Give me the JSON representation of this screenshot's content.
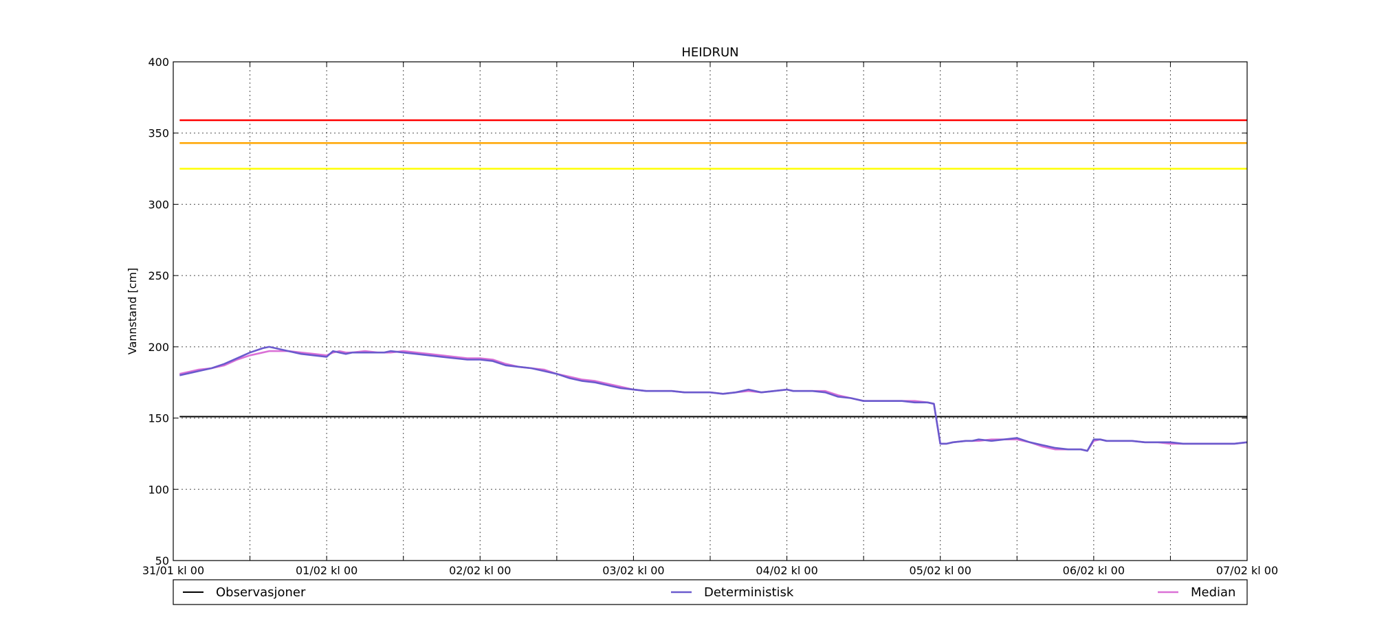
{
  "chart_data": {
    "type": "line",
    "title": "HEIDRUN",
    "xlabel": "",
    "ylabel": "Vannstand [cm]",
    "ylim": [
      50,
      400
    ],
    "yticks": [
      50,
      100,
      150,
      200,
      250,
      300,
      350,
      400
    ],
    "xlim_hours": [
      0,
      168
    ],
    "xticks": [
      {
        "hour": 0,
        "label": "31/01 kl 00"
      },
      {
        "hour": 24,
        "label": "01/02 kl 00"
      },
      {
        "hour": 48,
        "label": "02/02 kl 00"
      },
      {
        "hour": 72,
        "label": "03/02 kl 00"
      },
      {
        "hour": 96,
        "label": "04/02 kl 00"
      },
      {
        "hour": 120,
        "label": "05/02 kl 00"
      },
      {
        "hour": 144,
        "label": "06/02 kl 00"
      },
      {
        "hour": 168,
        "label": "07/02 kl 00"
      }
    ],
    "minor_grid_hours": [
      12,
      36,
      60,
      84,
      108,
      132,
      156
    ],
    "grid": true,
    "legend_position": "bottom",
    "thresholds": [
      {
        "value": 359,
        "color": "#ff0000"
      },
      {
        "value": 343,
        "color": "#ffa500"
      },
      {
        "value": 325,
        "color": "#ffff00"
      }
    ],
    "series": [
      {
        "name": "Observasjoner",
        "color": "#000000",
        "x": [
          1,
          168
        ],
        "y": [
          151,
          151
        ]
      },
      {
        "name": "Deterministisk",
        "color": "#6a5acd",
        "x": [
          1,
          3,
          4,
          6,
          8,
          10,
          12,
          14,
          15,
          16,
          17,
          18,
          20,
          22,
          24,
          25,
          26,
          27,
          28,
          30,
          32,
          33,
          34,
          36,
          38,
          40,
          42,
          44,
          46,
          48,
          50,
          52,
          54,
          56,
          58,
          60,
          62,
          64,
          66,
          68,
          70,
          72,
          74,
          76,
          78,
          80,
          82,
          84,
          86,
          88,
          90,
          92,
          94,
          96,
          97,
          98,
          100,
          102,
          104,
          106,
          108,
          110,
          112,
          114,
          116,
          118,
          119,
          120,
          121,
          122,
          124,
          125,
          126,
          128,
          130,
          132,
          134,
          136,
          138,
          140,
          142,
          143,
          144,
          145,
          146,
          148,
          150,
          152,
          153,
          154,
          156,
          158,
          160,
          162,
          164,
          166,
          168
        ],
        "y": [
          180,
          182,
          183,
          185,
          188,
          192,
          196,
          199,
          200,
          199,
          198,
          197,
          195,
          194,
          193,
          197,
          196,
          195,
          196,
          196,
          196,
          196,
          197,
          196,
          195,
          194,
          193,
          192,
          191,
          191,
          190,
          187,
          186,
          185,
          183,
          181,
          178,
          176,
          175,
          173,
          171,
          170,
          169,
          169,
          169,
          168,
          168,
          168,
          167,
          168,
          170,
          168,
          169,
          170,
          169,
          169,
          169,
          168,
          165,
          164,
          162,
          162,
          162,
          162,
          161,
          161,
          160,
          132,
          132,
          133,
          134,
          134,
          135,
          134,
          135,
          136,
          133,
          131,
          129,
          128,
          128,
          127,
          135,
          135,
          134,
          134,
          134,
          133,
          133,
          133,
          133,
          132,
          132,
          132,
          132,
          132,
          133
        ]
      },
      {
        "name": "Median",
        "color": "#da70d6",
        "x": [
          1,
          3,
          4,
          6,
          8,
          10,
          12,
          14,
          15,
          16,
          17,
          18,
          20,
          22,
          24,
          25,
          26,
          27,
          28,
          30,
          32,
          33,
          34,
          36,
          38,
          40,
          42,
          44,
          46,
          48,
          50,
          52,
          54,
          56,
          58,
          60,
          62,
          64,
          66,
          68,
          70,
          72,
          74,
          76,
          78,
          80,
          82,
          84,
          86,
          88,
          90,
          92,
          94,
          96,
          97,
          98,
          100,
          102,
          104,
          106,
          108,
          110,
          112,
          114,
          116,
          118,
          119,
          120,
          121,
          122,
          124,
          125,
          126,
          128,
          130,
          132,
          134,
          136,
          138,
          140,
          142,
          143,
          144,
          145,
          146,
          148,
          150,
          152,
          153,
          154,
          156,
          158,
          160,
          162,
          164,
          166,
          168
        ],
        "y": [
          181,
          183,
          184,
          185,
          187,
          191,
          194,
          196,
          197,
          197,
          197,
          197,
          196,
          195,
          194,
          196,
          197,
          196,
          196,
          197,
          196,
          196,
          196,
          197,
          196,
          195,
          194,
          193,
          192,
          192,
          191,
          188,
          186,
          185,
          184,
          181,
          179,
          177,
          176,
          174,
          172,
          170,
          169,
          169,
          169,
          168,
          168,
          168,
          167,
          168,
          169,
          168,
          169,
          170,
          169,
          169,
          169,
          169,
          166,
          164,
          162,
          162,
          162,
          162,
          162,
          161,
          160,
          132,
          132,
          133,
          134,
          134,
          134,
          135,
          135,
          135,
          133,
          130,
          128,
          128,
          128,
          127,
          134,
          135,
          134,
          134,
          134,
          133,
          133,
          133,
          132,
          132,
          132,
          132,
          132,
          132,
          133
        ]
      }
    ]
  }
}
